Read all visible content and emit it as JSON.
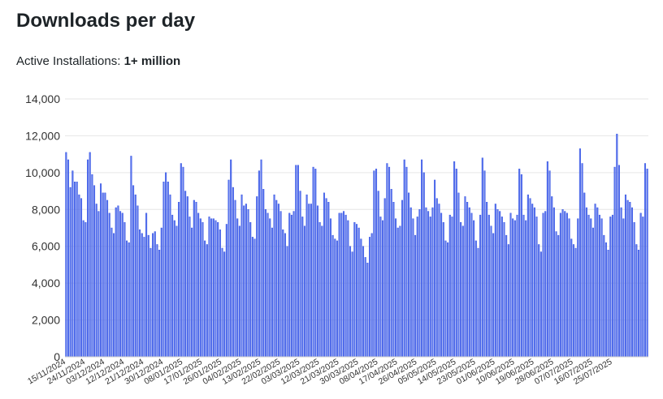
{
  "header": {
    "title": "Downloads per day",
    "active_label": "Active Installations:",
    "active_value": "1+ million"
  },
  "colors": {
    "bar_fill": "#5b76ee",
    "bar_stroke": "#2c4be0",
    "grid": "#e6e6e6",
    "axis_text": "#333333"
  },
  "chart_data": {
    "type": "bar",
    "title": "Downloads per day",
    "xlabel": "",
    "ylabel": "",
    "ylim": [
      0,
      14000
    ],
    "yticks": [
      0,
      2000,
      4000,
      6000,
      8000,
      10000,
      12000,
      14000
    ],
    "ytick_labels": [
      "0",
      "2,000",
      "4,000",
      "6,000",
      "8,000",
      "10,000",
      "12,000",
      "14,000"
    ],
    "grid": true,
    "legend": "none",
    "start_date": "2024-11-15",
    "end_date": "2025-07-30",
    "xtick_labels": [
      "15/11/2024",
      "24/11/2024",
      "03/12/2024",
      "12/12/2024",
      "21/12/2024",
      "30/12/2024",
      "08/01/2025",
      "17/01/2025",
      "26/01/2025",
      "04/02/2025",
      "13/02/2025",
      "22/02/2025",
      "03/03/2025",
      "12/03/2025",
      "21/03/2025",
      "30/03/2025",
      "08/04/2025",
      "17/04/2025",
      "26/04/2025",
      "05/05/2025",
      "14/05/2025",
      "23/05/2025",
      "01/06/2025",
      "10/06/2025",
      "19/06/2025",
      "28/06/2025",
      "07/07/2025",
      "16/07/2025",
      "25/07/2025"
    ],
    "values": [
      11100,
      10700,
      9200,
      10100,
      9500,
      9500,
      8800,
      8600,
      7400,
      7300,
      10700,
      11100,
      9900,
      9300,
      8300,
      7900,
      9400,
      8900,
      8900,
      8500,
      7800,
      7000,
      6700,
      8100,
      8200,
      7900,
      7800,
      7300,
      6300,
      6200,
      10900,
      9300,
      8800,
      8200,
      6900,
      6700,
      6500,
      7800,
      6600,
      5900,
      6700,
      6800,
      6100,
      5800,
      7000,
      9500,
      10000,
      9500,
      8800,
      7700,
      7400,
      7100,
      8400,
      10500,
      10300,
      9000,
      8700,
      7600,
      7000,
      8500,
      8400,
      7800,
      7500,
      7300,
      6300,
      6100,
      7600,
      7500,
      7500,
      7400,
      7300,
      6900,
      5900,
      5700,
      7200,
      9600,
      10700,
      9200,
      8500,
      7500,
      7100,
      8800,
      8200,
      8300,
      8000,
      7300,
      6500,
      6400,
      8700,
      10100,
      10700,
      9100,
      8000,
      7800,
      7500,
      7000,
      8800,
      8500,
      8300,
      7900,
      6900,
      6700,
      6000,
      7800,
      7700,
      7900,
      10400,
      10400,
      9000,
      7600,
      7100,
      8800,
      8300,
      8300,
      10300,
      10200,
      8200,
      7300,
      7100,
      8900,
      8600,
      8400,
      7500,
      6600,
      6400,
      6300,
      7800,
      7800,
      7900,
      7700,
      7400,
      6000,
      5700,
      7300,
      7200,
      7000,
      6400,
      6000,
      5400,
      5100,
      6500,
      6700,
      10100,
      10200,
      9000,
      7600,
      7400,
      8600,
      10500,
      10300,
      9100,
      8400,
      7500,
      7000,
      7100,
      8500,
      10700,
      10300,
      8900,
      8100,
      7500,
      6600,
      7600,
      8000,
      10700,
      10000,
      8100,
      7900,
      7600,
      8100,
      9600,
      8600,
      8300,
      7800,
      7300,
      6300,
      6200,
      7700,
      7600,
      10600,
      10200,
      8900,
      7300,
      7100,
      8700,
      8400,
      8100,
      7800,
      7400,
      6300,
      5900,
      7700,
      10800,
      10100,
      8400,
      7700,
      7100,
      6700,
      8300,
      8000,
      7900,
      7600,
      7300,
      6600,
      6100,
      7800,
      7500,
      7400,
      7700,
      10200,
      9900,
      7700,
      7400,
      8800,
      8600,
      8300,
      8100,
      7600,
      6100,
      5700,
      7800,
      7900,
      10600,
      10100,
      8700,
      8100,
      6800,
      6600,
      7800,
      8000,
      7900,
      7800,
      7500,
      6400,
      6100,
      5900,
      7500,
      11300,
      10500,
      8900,
      8100,
      7700,
      7500,
      7000,
      8300,
      8100,
      7700,
      7500,
      6600,
      6200,
      5800,
      7600,
      7700,
      10300,
      12100,
      10400,
      8100,
      7500,
      8800,
      8500,
      8400,
      8100,
      7300,
      6100,
      5800,
      7800,
      7600,
      10500,
      10200
    ]
  }
}
